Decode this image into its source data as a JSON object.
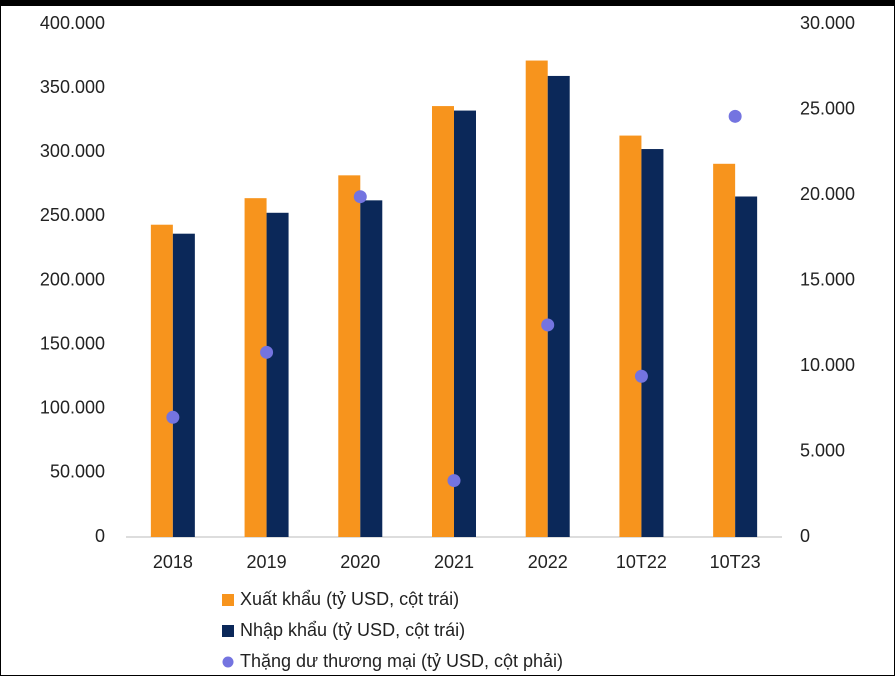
{
  "chart_data": {
    "type": "bar_scatter",
    "categories": [
      "2018",
      "2019",
      "2020",
      "2021",
      "2022",
      "10T22",
      "10T23"
    ],
    "series": [
      {
        "name": "Xuất khẩu (tỷ USD, cột trái)",
        "color": "#f7941d",
        "type": "bar",
        "values": [
          243.5,
          264.2,
          282.0,
          336.0,
          371.5,
          313.0,
          291.0
        ]
      },
      {
        "name": "Nhập khẩu (tỷ USD, cột trái)",
        "color": "#0b2859",
        "type": "bar",
        "values": [
          236.5,
          252.8,
          262.5,
          332.5,
          359.5,
          302.5,
          265.5
        ]
      },
      {
        "name": "Thặng dư thương mại (tỷ USD, cột phải)",
        "color": "#7474e0",
        "type": "scatter",
        "axis": "y2",
        "values": [
          7.0,
          10.8,
          19.9,
          3.3,
          12.4,
          9.4,
          24.6
        ]
      }
    ],
    "ylim": [
      0,
      400
    ],
    "yticks": [
      {
        "value": 0,
        "label": "0"
      },
      {
        "value": 50,
        "label": "50.000"
      },
      {
        "value": 100,
        "label": "100.000"
      },
      {
        "value": 150,
        "label": "150.000"
      },
      {
        "value": 200,
        "label": "200.000"
      },
      {
        "value": 250,
        "label": "250.000"
      },
      {
        "value": 300,
        "label": "300.000"
      },
      {
        "value": 350,
        "label": "350.000"
      },
      {
        "value": 400,
        "label": "400.000"
      }
    ],
    "y2lim": [
      0,
      30
    ],
    "y2ticks": [
      {
        "value": 0,
        "label": "0"
      },
      {
        "value": 5,
        "label": "5.000"
      },
      {
        "value": 10,
        "label": "10.000"
      },
      {
        "value": 15,
        "label": "15.000"
      },
      {
        "value": 20,
        "label": "20.000"
      },
      {
        "value": 25,
        "label": "25.000"
      },
      {
        "value": 30,
        "label": "30.000"
      }
    ],
    "grid": false
  }
}
